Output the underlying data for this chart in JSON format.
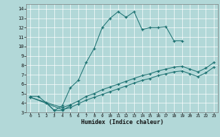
{
  "xlabel": "Humidex (Indice chaleur)",
  "background_color": "#b2d8d8",
  "grid_color": "#ffffff",
  "line_color": "#1a7070",
  "xlim": [
    -0.5,
    23.5
  ],
  "ylim": [
    3,
    14.5
  ],
  "yticks": [
    3,
    4,
    5,
    6,
    7,
    8,
    9,
    10,
    11,
    12,
    13,
    14
  ],
  "xticks": [
    0,
    1,
    2,
    3,
    4,
    5,
    6,
    7,
    8,
    9,
    10,
    11,
    12,
    13,
    14,
    15,
    16,
    17,
    18,
    19,
    20,
    21,
    22,
    23
  ],
  "line1_x": [
    0,
    1,
    2,
    3,
    4,
    5,
    6,
    7,
    8,
    9,
    10,
    11,
    12,
    13,
    14,
    15,
    16,
    17,
    18,
    19
  ],
  "line1_y": [
    4.7,
    4.7,
    4.0,
    3.2,
    3.7,
    5.6,
    6.4,
    8.3,
    9.8,
    12.0,
    13.0,
    13.7,
    13.1,
    13.7,
    11.8,
    12.0,
    12.0,
    12.1,
    10.6,
    10.6
  ],
  "line2_x": [
    2,
    3,
    4,
    5
  ],
  "line2_y": [
    4.0,
    3.2,
    3.2,
    3.7
  ],
  "line3_x": [
    0,
    4,
    5,
    6,
    7,
    8,
    9,
    10,
    11,
    12,
    13,
    14,
    15,
    16,
    17,
    18,
    19,
    20,
    21,
    22,
    23
  ],
  "line3_y": [
    4.6,
    3.5,
    3.8,
    4.2,
    4.7,
    5.0,
    5.4,
    5.7,
    6.0,
    6.3,
    6.6,
    6.9,
    7.1,
    7.4,
    7.6,
    7.8,
    7.9,
    7.6,
    7.3,
    7.7,
    8.3
  ],
  "line4_x": [
    0,
    4,
    5,
    6,
    7,
    8,
    9,
    10,
    11,
    12,
    13,
    14,
    15,
    16,
    17,
    18,
    19,
    20,
    21,
    22,
    23
  ],
  "line4_y": [
    4.6,
    3.3,
    3.5,
    3.9,
    4.3,
    4.6,
    4.9,
    5.2,
    5.5,
    5.8,
    6.1,
    6.4,
    6.6,
    6.9,
    7.1,
    7.3,
    7.4,
    7.1,
    6.8,
    7.2,
    7.8
  ]
}
